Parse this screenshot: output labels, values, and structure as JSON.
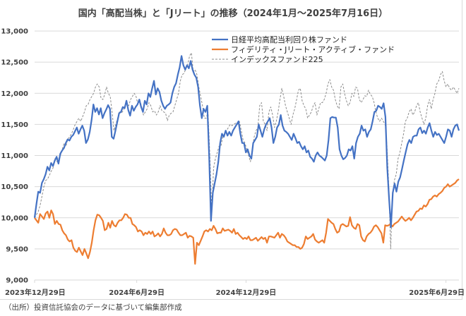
{
  "title": "国内「高配当株」と「Jリート」の推移（2024年1月～2025年7月16日）",
  "source": "（出所）投資信託協会のデータに基づいて編集部作成",
  "chart_data": {
    "type": "line",
    "title": "国内「高配当株」と「Jリート」の推移（2024年1月～2025年7月16日）",
    "xlabel": "",
    "ylabel": "",
    "ylim": [
      9000,
      13000
    ],
    "yticks": [
      9000,
      9500,
      10000,
      10500,
      11000,
      11500,
      12000,
      12500,
      13000
    ],
    "ytick_labels": [
      "9,000",
      "9,500",
      "10,000",
      "10,500",
      "11,000",
      "11,500",
      "12,000",
      "12,500",
      "13,000"
    ],
    "xticks": [
      {
        "label": "2023年12月29日",
        "pos": 0.0
      },
      {
        "label": "2024年6月29日",
        "pos": 0.2407
      },
      {
        "label": "2024年12月29日",
        "pos": 0.4983
      },
      {
        "label": "2025年6月29日",
        "pos": 0.9694
      }
    ],
    "grid": true,
    "legend_position": "top-right",
    "series": [
      {
        "name": "日経平均高配当利回り株ファンド",
        "color": "#4472c4",
        "style": "solid",
        "values": [
          10000,
          10220,
          10420,
          10400,
          10560,
          10620,
          10700,
          10820,
          10760,
          10880,
          10830,
          10920,
          10980,
          10870,
          11030,
          11080,
          11120,
          11200,
          11260,
          11240,
          11300,
          11330,
          11390,
          11450,
          11350,
          11420,
          11480,
          11400,
          11200,
          11260,
          11380,
          11570,
          11820,
          11700,
          11760,
          11660,
          11760,
          11600,
          11680,
          11740,
          11810,
          11750,
          11300,
          11270,
          11400,
          11540,
          11680,
          11700,
          11780,
          11760,
          11880,
          11730,
          11640,
          11800,
          11720,
          11780,
          11820,
          11900,
          11780,
          11700,
          11880,
          11820,
          12000,
          11940,
          12080,
          12200,
          11980,
          12080,
          12020,
          11880,
          11800,
          11750,
          11800,
          11820,
          11850,
          12000,
          12100,
          12160,
          12300,
          12420,
          12600,
          12450,
          12380,
          12450,
          12400,
          12520,
          12380,
          12300,
          12250,
          12100,
          11800,
          11600,
          11750,
          11700,
          11800,
          11000,
          9950,
          10400,
          10550,
          10700,
          10900,
          11200,
          11350,
          11300,
          11400,
          11320,
          11380,
          11320,
          11400,
          11450,
          11500,
          11550,
          11350,
          11200,
          11200,
          11050,
          11100,
          11000,
          10950,
          11200,
          11250,
          11300,
          11500,
          11400,
          11300,
          11420,
          11500,
          11550,
          11600,
          11450,
          11200,
          11300,
          11450,
          11500,
          11650,
          11480,
          11400,
          11380,
          11350,
          11300,
          11250,
          11350,
          11280,
          11200,
          11220,
          11150,
          11100,
          11150,
          11050,
          11080,
          10980,
          10950,
          10900,
          11000,
          11050,
          11000,
          10980,
          10950,
          10920,
          11000,
          11250,
          11600,
          11620,
          11610,
          11610,
          11450,
          11100,
          11000,
          10940,
          10960,
          11000,
          11100,
          11080,
          11150,
          10950,
          11200,
          11300,
          11350,
          11480,
          11400,
          11420,
          11300,
          11380,
          11420,
          11550,
          11700,
          11720,
          11800,
          11780,
          11750,
          11840,
          11620,
          10800,
          10300,
          9850,
          10400,
          10550,
          10420,
          10580,
          10650,
          10780,
          10920,
          11050,
          11180,
          11250,
          11200,
          11300,
          11320,
          11320,
          11420,
          11450,
          11360,
          11400,
          11350,
          11450,
          11520,
          11400,
          11300,
          11380,
          11330,
          11350,
          11300,
          11250,
          11200,
          11300,
          11420,
          11400,
          11300,
          11420,
          11480,
          11500,
          11400
        ],
        "end_value": 11400
      },
      {
        "name": "フィデリティ・Jリート・アクティブ・ファンド",
        "color": "#ed7d31",
        "style": "solid",
        "values": [
          10000,
          9960,
          9920,
          10060,
          10020,
          9980,
          10070,
          10100,
          10000,
          10120,
          10060,
          9900,
          9950,
          9900,
          9890,
          9800,
          9750,
          9720,
          9650,
          9620,
          9640,
          9520,
          9470,
          9450,
          9520,
          9460,
          9400,
          9500,
          9430,
          9350,
          9450,
          9600,
          9800,
          9960,
          10050,
          10040,
          10000,
          9950,
          9800,
          9820,
          9920,
          9840,
          9950,
          9880,
          9860,
          9920,
          9960,
          9960,
          10000,
          10060,
          10050,
          10000,
          10000,
          9900,
          9880,
          9850,
          9780,
          9800,
          9780,
          9720,
          9760,
          9740,
          9780,
          9740,
          9780,
          9700,
          9720,
          9750,
          9700,
          9740,
          9830,
          9760,
          9720,
          9720,
          9740,
          9800,
          9820,
          9810,
          9760,
          9720,
          9720,
          9740,
          9760,
          9680,
          9710,
          9700,
          9680,
          9260,
          9600,
          9560,
          9630,
          9700,
          9780,
          9800,
          9780,
          9820,
          9800,
          9870,
          9820,
          9750,
          9760,
          9760,
          9830,
          9790,
          9800,
          9810,
          9790,
          9760,
          9820,
          9740,
          9760,
          9720,
          9690,
          9660,
          9680,
          9660,
          9700,
          9640,
          9640,
          9660,
          9680,
          9630,
          9660,
          9690,
          9660,
          9680,
          9600,
          9700,
          9700,
          9690,
          9680,
          9720,
          9760,
          9680,
          9740,
          9720,
          9680,
          9620,
          9600,
          9580,
          9560,
          9560,
          9530,
          9530,
          9500,
          9520,
          9580,
          9700,
          9660,
          9680,
          9700,
          9740,
          9650,
          9620,
          9600,
          9620,
          9640,
          9600,
          9760,
          9980,
          9950,
          9920,
          9900,
          9820,
          9760,
          9780,
          9880,
          9900,
          9880,
          9860,
          9870,
          10010,
          9880,
          9840,
          9820,
          9900,
          9880,
          9700,
          9640,
          9620,
          9700,
          9740,
          9760,
          9800,
          9860,
          9880,
          9850,
          9800,
          9750,
          9600,
          9880,
          9870,
          9880,
          9900,
          9860,
          9900,
          9920,
          9940,
          9980,
          10020,
          9980,
          9950,
          9970,
          10000,
          9960,
          10000,
          10050,
          10100,
          10110,
          10150,
          10140,
          10200,
          10180,
          10220,
          10290,
          10300,
          10340,
          10360,
          10340,
          10380,
          10400,
          10430,
          10480,
          10500,
          10540,
          10500,
          10520,
          10540,
          10560,
          10600,
          10620
        ],
        "end_value": 10620
      },
      {
        "name": "インデックスファンド225",
        "color": "#8c8c8c",
        "style": "dashed",
        "values": [
          10000,
          10050,
          10100,
          10200,
          10350,
          10500,
          10600,
          10620,
          10680,
          10750,
          10800,
          10950,
          10900,
          10950,
          11000,
          11100,
          11200,
          11150,
          11260,
          11300,
          11350,
          11420,
          11500,
          11550,
          11600,
          11550,
          11620,
          11700,
          11800,
          11820,
          11900,
          11950,
          12000,
          12100,
          12150,
          12100,
          11920,
          11900,
          11980,
          12100,
          12000,
          11950,
          11700,
          11400,
          11500,
          11600,
          11700,
          11680,
          11720,
          11800,
          11850,
          11800,
          11900,
          11950,
          12000,
          11950,
          11820,
          11900,
          11780,
          11650,
          11700,
          11750,
          11850,
          11800,
          11700,
          11720,
          11650,
          11700,
          11800,
          11720,
          11700,
          11680,
          11560,
          11650,
          11680,
          11700,
          11800,
          11900,
          12000,
          12200,
          12300,
          12320,
          12400,
          12460,
          12600,
          12650,
          12350,
          12380,
          12300,
          12100,
          11950,
          11800,
          11600,
          11600,
          11700,
          11000,
          10100,
          10800,
          10950,
          11050,
          11150,
          11150,
          11300,
          11350,
          11400,
          11450,
          11500,
          11480,
          11500,
          11520,
          11500,
          11550,
          11400,
          11250,
          11200,
          11100,
          11000,
          10900,
          11100,
          11300,
          11400,
          11450,
          11800,
          11850,
          11550,
          11500,
          11400,
          11700,
          11780,
          11650,
          11450,
          11550,
          11700,
          11900,
          12080,
          11950,
          11800,
          11700,
          11600,
          11500,
          11650,
          11750,
          11900,
          12050,
          12080,
          11880,
          11800,
          11750,
          11600,
          11650,
          11700,
          11800,
          11850,
          11650,
          11750,
          11850,
          11850,
          11900,
          12000,
          12150,
          12220,
          12100,
          12050,
          11900,
          11800,
          11750,
          12100,
          12150,
          12000,
          11880,
          11800,
          11850,
          12000,
          11950,
          12100,
          12080,
          11900,
          11850,
          11900,
          11960,
          11950,
          12050,
          11980,
          11950,
          11850,
          11700,
          11600,
          11550,
          11600,
          11550,
          11500,
          11150,
          10500,
          9500,
          10350,
          10600,
          10700,
          10950,
          11050,
          11200,
          11350,
          11550,
          11600,
          11700,
          11750,
          11650,
          11700,
          11800,
          11850,
          11700,
          11600,
          11500,
          11600,
          11800,
          11900,
          11750,
          11900,
          12000,
          12150,
          12200,
          12300,
          12350,
          12200,
          12100,
          12150,
          12080,
          12050,
          12100,
          12050,
          12000,
          12080
        ],
        "end_value": 12080
      }
    ]
  }
}
